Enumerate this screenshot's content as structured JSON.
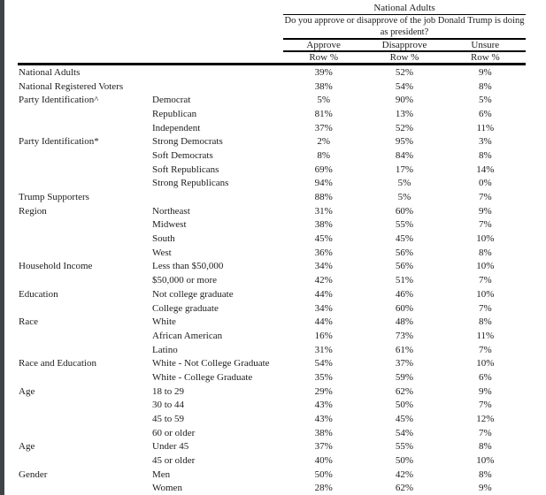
{
  "header": {
    "group_title": "National Adults",
    "question": "Do you approve or disapprove of the job Donald Trump is doing as president?",
    "columns": [
      "Approve",
      "Disapprove",
      "Unsure"
    ],
    "row_pct_label": "Row %"
  },
  "rows": [
    {
      "category": "National Adults",
      "subcategory": "",
      "approve": "39%",
      "disapprove": "52%",
      "unsure": "9%"
    },
    {
      "category": "National Registered Voters",
      "subcategory": "",
      "approve": "38%",
      "disapprove": "54%",
      "unsure": "8%"
    },
    {
      "category": "Party Identification^",
      "subcategory": "Democrat",
      "approve": "5%",
      "disapprove": "90%",
      "unsure": "5%"
    },
    {
      "category": "",
      "subcategory": "Republican",
      "approve": "81%",
      "disapprove": "13%",
      "unsure": "6%"
    },
    {
      "category": "",
      "subcategory": "Independent",
      "approve": "37%",
      "disapprove": "52%",
      "unsure": "11%"
    },
    {
      "category": "Party Identification*",
      "subcategory": "Strong Democrats",
      "approve": "2%",
      "disapprove": "95%",
      "unsure": "3%"
    },
    {
      "category": "",
      "subcategory": "Soft Democrats",
      "approve": "8%",
      "disapprove": "84%",
      "unsure": "8%"
    },
    {
      "category": "",
      "subcategory": "Soft Republicans",
      "approve": "69%",
      "disapprove": "17%",
      "unsure": "14%"
    },
    {
      "category": "",
      "subcategory": "Strong Republicans",
      "approve": "94%",
      "disapprove": "5%",
      "unsure": "0%"
    },
    {
      "category": "Trump Supporters",
      "subcategory": "",
      "approve": "88%",
      "disapprove": "5%",
      "unsure": "7%"
    },
    {
      "category": "Region",
      "subcategory": "Northeast",
      "approve": "31%",
      "disapprove": "60%",
      "unsure": "9%"
    },
    {
      "category": "",
      "subcategory": "Midwest",
      "approve": "38%",
      "disapprove": "55%",
      "unsure": "7%"
    },
    {
      "category": "",
      "subcategory": "South",
      "approve": "45%",
      "disapprove": "45%",
      "unsure": "10%"
    },
    {
      "category": "",
      "subcategory": "West",
      "approve": "36%",
      "disapprove": "56%",
      "unsure": "8%"
    },
    {
      "category": "Household Income",
      "subcategory": "Less than $50,000",
      "approve": "34%",
      "disapprove": "56%",
      "unsure": "10%"
    },
    {
      "category": "",
      "subcategory": "$50,000 or more",
      "approve": "42%",
      "disapprove": "51%",
      "unsure": "7%"
    },
    {
      "category": "Education",
      "subcategory": "Not college graduate",
      "approve": "44%",
      "disapprove": "46%",
      "unsure": "10%"
    },
    {
      "category": "",
      "subcategory": "College graduate",
      "approve": "34%",
      "disapprove": "60%",
      "unsure": "7%"
    },
    {
      "category": "Race",
      "subcategory": "White",
      "approve": "44%",
      "disapprove": "48%",
      "unsure": "8%"
    },
    {
      "category": "",
      "subcategory": "African American",
      "approve": "16%",
      "disapprove": "73%",
      "unsure": "11%"
    },
    {
      "category": "",
      "subcategory": "Latino",
      "approve": "31%",
      "disapprove": "61%",
      "unsure": "7%"
    },
    {
      "category": "Race and Education",
      "subcategory": "White - Not College Graduate",
      "approve": "54%",
      "disapprove": "37%",
      "unsure": "10%"
    },
    {
      "category": "",
      "subcategory": "White - College Graduate",
      "approve": "35%",
      "disapprove": "59%",
      "unsure": "6%"
    },
    {
      "category": "Age",
      "subcategory": "18 to 29",
      "approve": "29%",
      "disapprove": "62%",
      "unsure": "9%"
    },
    {
      "category": "",
      "subcategory": "30 to 44",
      "approve": "43%",
      "disapprove": "50%",
      "unsure": "7%"
    },
    {
      "category": "",
      "subcategory": "45 to 59",
      "approve": "43%",
      "disapprove": "45%",
      "unsure": "12%"
    },
    {
      "category": "",
      "subcategory": "60 or older",
      "approve": "38%",
      "disapprove": "54%",
      "unsure": "7%"
    },
    {
      "category": "Age",
      "subcategory": "Under 45",
      "approve": "37%",
      "disapprove": "55%",
      "unsure": "8%"
    },
    {
      "category": "",
      "subcategory": "45 or older",
      "approve": "40%",
      "disapprove": "50%",
      "unsure": "10%"
    },
    {
      "category": "Gender",
      "subcategory": "Men",
      "approve": "50%",
      "disapprove": "42%",
      "unsure": "8%"
    },
    {
      "category": "",
      "subcategory": "Women",
      "approve": "28%",
      "disapprove": "62%",
      "unsure": "9%"
    }
  ]
}
